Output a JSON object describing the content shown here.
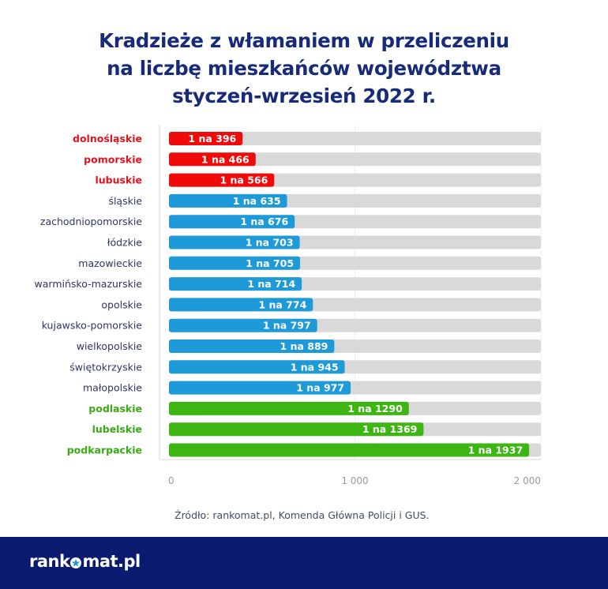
{
  "chart_data": {
    "type": "bar",
    "orientation": "horizontal",
    "title_lines": [
      "Kradzieże z włamaniem w przeliczeniu",
      "na liczbę mieszkańców województwa",
      "styczeń-wrzesień 2022 r."
    ],
    "categories": [
      "dolnośląskie",
      "pomorskie",
      "lubuskie",
      "śląskie",
      "zachodniopomorskie",
      "łódzkie",
      "mazowieckie",
      "warmińsko-mazurskie",
      "opolskie",
      "kujawsko-pomorskie",
      "wielkopolskie",
      "świętokrzyskie",
      "małopolskie",
      "podlaskie",
      "lubelskie",
      "podkarpackie"
    ],
    "values": [
      396,
      466,
      566,
      635,
      676,
      703,
      705,
      714,
      774,
      797,
      889,
      945,
      977,
      1290,
      1369,
      1937
    ],
    "data_labels": [
      "1 na 396",
      "1 na 466",
      "1 na 566",
      "1 na 635",
      "1 na 676",
      "1 na 703",
      "1 na 705",
      "1 na 714",
      "1 na 774",
      "1 na 797",
      "1 na 889",
      "1 na 945",
      "1 na 977",
      "1 na 1290",
      "1 na 1369",
      "1 na 1937"
    ],
    "groups": [
      "high",
      "high",
      "high",
      "mid",
      "mid",
      "mid",
      "mid",
      "mid",
      "mid",
      "mid",
      "mid",
      "mid",
      "mid",
      "low",
      "low",
      "low"
    ],
    "group_colors": {
      "high": "#f00a0a",
      "mid": "#1e9ad9",
      "low": "#3db512"
    },
    "label_colors": {
      "high": "#e0141e",
      "mid": "#2e3566",
      "low": "#3aaa14"
    },
    "background_track_color": "#d9d9d9",
    "xlim": [
      0,
      2000
    ],
    "xticks": [
      0,
      1000,
      2000
    ],
    "xtick_labels": [
      "0",
      "1 000",
      "2 000"
    ],
    "xlabel": "",
    "ylabel": "",
    "grid": true,
    "legend": "none"
  },
  "source": "Źródło: rankomat.pl, Komenda Główna Policji i GUS.",
  "footer": {
    "logo_left": "rank",
    "logo_right": "mat.pl"
  }
}
